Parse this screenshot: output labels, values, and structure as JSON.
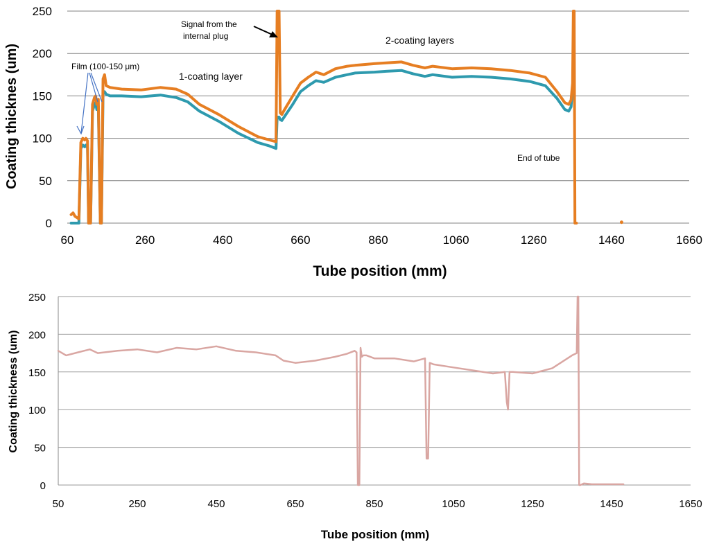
{
  "chart_data": [
    {
      "type": "line",
      "title": "",
      "xlabel": "Tube position (mm)",
      "ylabel": "Coating thicknes (um)",
      "xlim": [
        60,
        1660
      ],
      "ylim": [
        0,
        250
      ],
      "xticks": [
        "60",
        "260",
        "460",
        "660",
        "860",
        "1060",
        "1260",
        "1460",
        "1660"
      ],
      "yticks": [
        "0",
        "50",
        "100",
        "150",
        "200",
        "250"
      ],
      "grid": true,
      "annotations": {
        "film": "Film (100-150 μm)",
        "plug_line1": "Signal from the",
        "plug_line2": "internal plug",
        "one_layer": "1-coating layer",
        "two_layers": "2-coating layers",
        "end_tube": "End of tube"
      },
      "series": [
        {
          "name": "orange",
          "color": "#E67E22",
          "x": [
            70,
            75,
            80,
            90,
            95,
            100,
            105,
            108,
            112,
            115,
            118,
            120,
            125,
            130,
            133,
            136,
            140,
            145,
            148,
            152,
            156,
            160,
            170,
            200,
            250,
            300,
            340,
            370,
            400,
            450,
            500,
            550,
            580,
            597,
            600,
            602,
            605,
            608,
            612,
            618,
            640,
            660,
            680,
            700,
            720,
            750,
            780,
            800,
            850,
            880,
            920,
            950,
            980,
            1000,
            1050,
            1100,
            1150,
            1200,
            1250,
            1290,
            1320,
            1340,
            1350,
            1356,
            1360,
            1362,
            1364,
            1366,
            1368,
            1370
          ],
          "y": [
            10,
            12,
            8,
            5,
            95,
            100,
            98,
            100,
            97,
            0,
            0,
            0,
            140,
            148,
            150,
            140,
            146,
            0,
            0,
            170,
            175,
            162,
            160,
            158,
            157,
            160,
            158,
            152,
            140,
            128,
            114,
            102,
            98,
            96,
            250,
            250,
            250,
            130,
            128,
            133,
            150,
            165,
            172,
            178,
            175,
            182,
            185,
            186,
            188,
            189,
            190,
            186,
            183,
            185,
            182,
            183,
            182,
            180,
            177,
            172,
            155,
            142,
            140,
            145,
            165,
            250,
            250,
            0,
            0,
            0
          ],
          "extra_points": [
            {
              "x": 1486,
              "y": 1
            }
          ]
        },
        {
          "name": "teal",
          "color": "#2E9AAE",
          "x": [
            70,
            75,
            80,
            90,
            95,
            100,
            105,
            108,
            112,
            115,
            118,
            120,
            125,
            130,
            133,
            136,
            140,
            145,
            148,
            152,
            156,
            160,
            170,
            200,
            250,
            300,
            340,
            370,
            400,
            450,
            500,
            550,
            580,
            597,
            600,
            602,
            605,
            608,
            612,
            618,
            640,
            660,
            680,
            700,
            720,
            750,
            780,
            800,
            850,
            880,
            920,
            950,
            980,
            1000,
            1050,
            1100,
            1150,
            1200,
            1250,
            1290,
            1320,
            1340,
            1350,
            1356,
            1360,
            1362
          ],
          "y": [
            0,
            0,
            0,
            0,
            88,
            92,
            90,
            92,
            89,
            0,
            0,
            0,
            132,
            140,
            142,
            134,
            138,
            0,
            0,
            152,
            155,
            152,
            150,
            150,
            149,
            151,
            148,
            143,
            132,
            120,
            106,
            95,
            91,
            88,
            125,
            125,
            125,
            122,
            121,
            125,
            140,
            155,
            162,
            168,
            166,
            172,
            175,
            177,
            178,
            179,
            180,
            176,
            173,
            175,
            172,
            173,
            172,
            170,
            167,
            162,
            147,
            134,
            132,
            137,
            158,
            162
          ]
        }
      ]
    },
    {
      "type": "line",
      "title": "",
      "xlabel": "Tube position  (mm)",
      "ylabel": "Coating thickness  (um)",
      "xlim": [
        50,
        1650
      ],
      "ylim": [
        0,
        250
      ],
      "xticks": [
        "50",
        "250",
        "450",
        "650",
        "850",
        "1050",
        "1250",
        "1450",
        "1650"
      ],
      "yticks": [
        "0",
        "50",
        "100",
        "150",
        "200",
        "250"
      ],
      "grid": true,
      "series": [
        {
          "name": "pink",
          "color": "#D9A6A2",
          "x": [
            50,
            70,
            100,
            130,
            150,
            200,
            250,
            300,
            350,
            400,
            450,
            500,
            550,
            600,
            620,
            650,
            700,
            750,
            780,
            800,
            805,
            808,
            812,
            815,
            818,
            822,
            830,
            850,
            900,
            950,
            978,
            982,
            986,
            990,
            1000,
            1050,
            1100,
            1150,
            1180,
            1185,
            1188,
            1192,
            1200,
            1250,
            1300,
            1350,
            1362,
            1364,
            1366,
            1368,
            1371,
            1380,
            1400,
            1450,
            1480
          ],
          "y": [
            178,
            172,
            176,
            180,
            175,
            178,
            180,
            176,
            182,
            180,
            184,
            178,
            176,
            172,
            165,
            162,
            165,
            170,
            174,
            178,
            176,
            0,
            0,
            182,
            170,
            172,
            172,
            168,
            168,
            164,
            168,
            35,
            35,
            162,
            160,
            156,
            152,
            148,
            150,
            110,
            100,
            150,
            150,
            148,
            155,
            172,
            175,
            250,
            250,
            0,
            0,
            2,
            1,
            1,
            1
          ]
        }
      ]
    }
  ]
}
